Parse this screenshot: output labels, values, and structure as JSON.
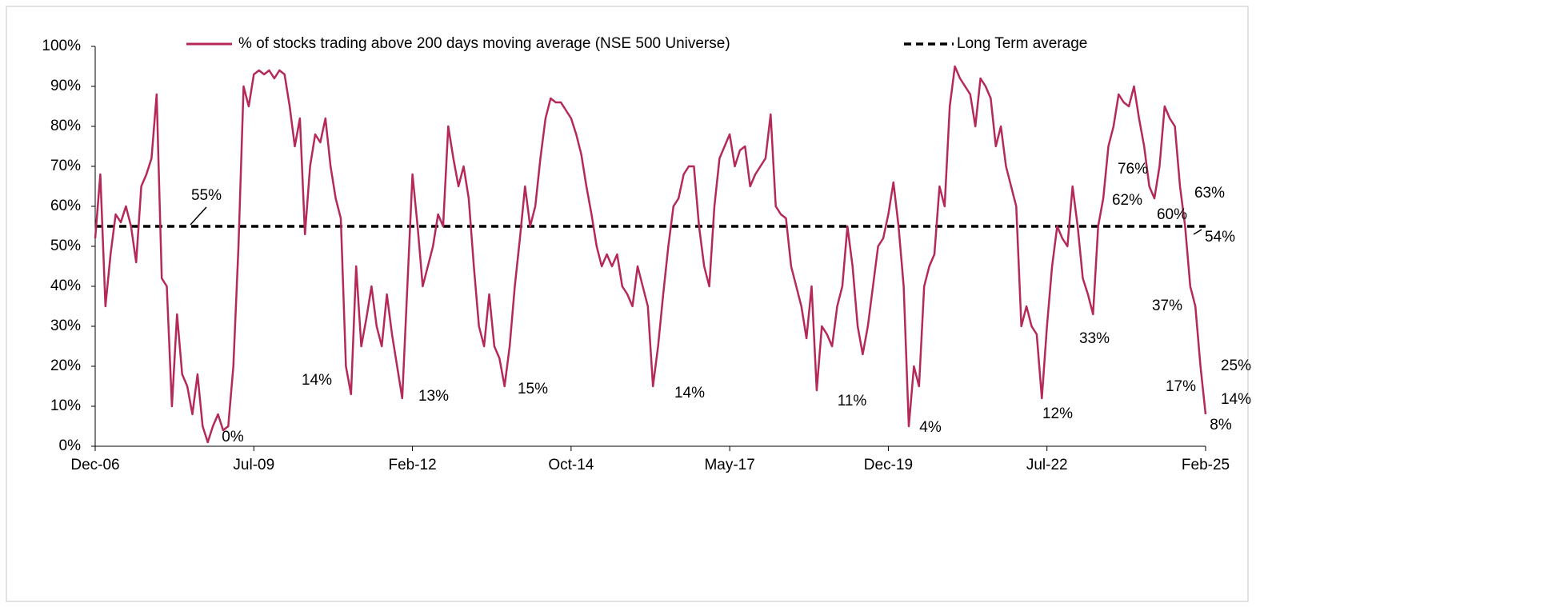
{
  "chart_data": {
    "type": "line",
    "categories": [
      "Dec-06",
      null,
      null,
      null,
      null,
      null,
      null,
      null,
      null,
      null,
      null,
      null,
      null,
      null,
      null,
      null,
      null,
      null,
      null,
      null,
      null,
      null,
      null,
      null,
      null,
      null,
      null,
      null,
      null,
      null,
      null,
      "Jul-09",
      null,
      null,
      null,
      null,
      null,
      null,
      null,
      null,
      null,
      null,
      null,
      null,
      null,
      null,
      null,
      null,
      null,
      null,
      null,
      null,
      null,
      null,
      null,
      null,
      null,
      null,
      null,
      null,
      null,
      null,
      "Feb-12",
      null,
      null,
      null,
      null,
      null,
      null,
      null,
      null,
      null,
      null,
      null,
      null,
      null,
      null,
      null,
      null,
      null,
      null,
      null,
      null,
      null,
      null,
      null,
      null,
      null,
      null,
      null,
      null,
      null,
      null,
      "Oct-14",
      null,
      null,
      null,
      null,
      null,
      null,
      null,
      null,
      null,
      null,
      null,
      null,
      null,
      null,
      null,
      null,
      null,
      null,
      null,
      null,
      null,
      null,
      null,
      null,
      null,
      null,
      null,
      null,
      null,
      null,
      "May-17",
      null,
      null,
      null,
      null,
      null,
      null,
      null,
      null,
      null,
      null,
      null,
      null,
      null,
      null,
      null,
      null,
      null,
      null,
      null,
      null,
      null,
      null,
      null,
      null,
      null,
      null,
      null,
      null,
      null,
      null,
      "Dec-19",
      null,
      null,
      null,
      null,
      null,
      null,
      null,
      null,
      null,
      null,
      null,
      null,
      null,
      null,
      null,
      null,
      null,
      null,
      null,
      null,
      null,
      null,
      null,
      null,
      null,
      null,
      null,
      null,
      null,
      null,
      "Jul-22",
      null,
      null,
      null,
      null,
      null,
      null,
      null,
      null,
      null,
      null,
      null,
      null,
      null,
      null,
      null,
      null,
      null,
      null,
      null,
      null,
      null,
      null,
      null,
      null,
      null,
      null,
      null,
      null,
      null,
      null,
      "Feb-25"
    ],
    "series": [
      {
        "name": "% of stocks trading above 200 days moving average (NSE 500 Universe)",
        "color": "#b5285a",
        "values": [
          52,
          68,
          35,
          48,
          58,
          56,
          60,
          55,
          46,
          65,
          68,
          72,
          88,
          42,
          40,
          10,
          33,
          18,
          15,
          8,
          18,
          5,
          1,
          5,
          8,
          4,
          5,
          20,
          50,
          90,
          85,
          93,
          94,
          93,
          94,
          92,
          94,
          93,
          85,
          75,
          82,
          53,
          70,
          78,
          76,
          82,
          70,
          62,
          57,
          20,
          13,
          45,
          25,
          32,
          40,
          30,
          25,
          38,
          28,
          20,
          12,
          40,
          68,
          55,
          40,
          45,
          50,
          58,
          55,
          80,
          72,
          65,
          70,
          62,
          45,
          30,
          25,
          38,
          25,
          22,
          15,
          25,
          40,
          52,
          65,
          55,
          60,
          72,
          82,
          87,
          86,
          86,
          84,
          82,
          78,
          73,
          65,
          58,
          50,
          45,
          48,
          45,
          48,
          40,
          38,
          35,
          45,
          40,
          35,
          15,
          25,
          38,
          50,
          60,
          62,
          68,
          70,
          70,
          55,
          45,
          40,
          60,
          72,
          75,
          78,
          70,
          74,
          75,
          65,
          68,
          70,
          72,
          83,
          60,
          58,
          57,
          45,
          40,
          35,
          27,
          40,
          14,
          30,
          28,
          25,
          35,
          40,
          55,
          45,
          30,
          23,
          30,
          40,
          50,
          52,
          58,
          66,
          55,
          40,
          5,
          20,
          15,
          40,
          45,
          48,
          65,
          60,
          85,
          95,
          92,
          90,
          88,
          80,
          92,
          90,
          87,
          75,
          80,
          70,
          65,
          60,
          30,
          35,
          30,
          28,
          12,
          30,
          45,
          55,
          52,
          50,
          65,
          55,
          42,
          38,
          33,
          55,
          62,
          75,
          80,
          88,
          86,
          85,
          90,
          82,
          75,
          65,
          62,
          70,
          85,
          82,
          80,
          65,
          55,
          40,
          35,
          20,
          8
        ]
      }
    ],
    "average": {
      "name": "Long Term average",
      "value": 55,
      "color": "#000000"
    },
    "ylim": [
      0,
      100
    ],
    "yticks": [
      {
        "value": 0,
        "label": "0%"
      },
      {
        "value": 10,
        "label": "10%"
      },
      {
        "value": 20,
        "label": "20%"
      },
      {
        "value": 30,
        "label": "30%"
      },
      {
        "value": 40,
        "label": "40%"
      },
      {
        "value": 50,
        "label": "50%"
      },
      {
        "value": 60,
        "label": "60%"
      },
      {
        "value": 70,
        "label": "70%"
      },
      {
        "value": 80,
        "label": "80%"
      },
      {
        "value": 90,
        "label": "90%"
      },
      {
        "value": 100,
        "label": "100%"
      }
    ],
    "annotations": [
      "55%",
      "0%",
      "14%",
      "13%",
      "15%",
      "14%",
      "11%",
      "4%",
      "12%",
      "33%",
      "37%",
      "62%",
      "76%",
      "60%",
      "63%",
      "54%",
      "25%",
      "17%",
      "14%",
      "8%"
    ],
    "legend": "top"
  }
}
